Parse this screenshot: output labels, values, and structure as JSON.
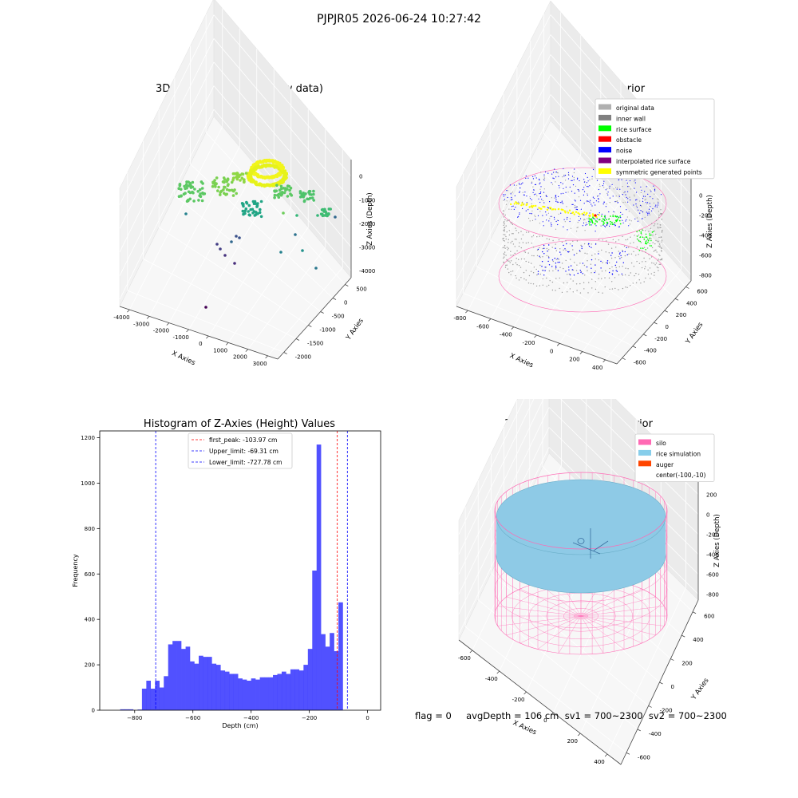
{
  "suptitle": "PJPJR05 2026-06-24 10:27:42",
  "footer_text": "flag = 0     avgDepth = 106 cm  sv1 = 700~2300  sv2 = 700~2300",
  "colors": {
    "wire": "#ff69b4",
    "rice": "#8ecae6",
    "auger": "#ff4500",
    "hist": "#3333ff",
    "gray": "#9a9a9a",
    "green": "#00ff00",
    "noise": "#0000ff",
    "yellow": "#ffff00",
    "obstacle": "#ff0000",
    "purple": "#800080"
  },
  "chart_data": [
    {
      "type": "scatter",
      "title": "3D Plot of Silo Interior(row data)",
      "xlabel": "X Axies",
      "ylabel": "Y Axies",
      "zlabel": "Z Axies (Depth)",
      "x_ticks": [
        "-4000",
        "-3000",
        "-2000",
        "-1000",
        "0",
        "1000",
        "2000",
        "3000"
      ],
      "y_ticks": [
        "-2000",
        "-1500",
        "-1000",
        "-500",
        "0",
        "500"
      ],
      "z_ticks": [
        "-4000",
        "-3000",
        "-2000",
        "-1000",
        "0"
      ],
      "xlim": [
        -4300,
        3300
      ],
      "ylim": [
        -2100,
        700
      ],
      "zlim": [
        -4500,
        200
      ]
    },
    {
      "type": "scatter",
      "title": "3D classify of Silo Interior",
      "xlabel": "X Axies",
      "ylabel": "Y Axies",
      "zlabel": "Z Axies (Depth)",
      "x_ticks": [
        "-800",
        "-600",
        "-400",
        "-200",
        "0",
        "200",
        "400"
      ],
      "y_ticks": [
        "-600",
        "-400",
        "-200",
        "0",
        "200",
        "400",
        "600"
      ],
      "z_ticks": [
        "-800",
        "-600",
        "-400",
        "-200",
        "0",
        "200"
      ],
      "xlim": [
        -850,
        450
      ],
      "ylim": [
        -650,
        650
      ],
      "zlim": [
        -900,
        250
      ],
      "legend": [
        {
          "label": "original data",
          "color": "#b0b0b0"
        },
        {
          "label": "inner wall",
          "color": "#808080"
        },
        {
          "label": "rice surface",
          "color": "#00ff00"
        },
        {
          "label": "obstacle",
          "color": "#ff0000"
        },
        {
          "label": "noise",
          "color": "#0000ff"
        },
        {
          "label": "interpolated rice surface",
          "color": "#800080"
        },
        {
          "label": "symmetric generated points",
          "color": "#ffff00"
        }
      ],
      "legend_position": "upper right"
    },
    {
      "type": "bar",
      "title": "Histogram of Z-Axies (Height) Values",
      "xlabel": "Depth (cm)",
      "ylabel": "Frequency",
      "x_ticks": [
        "−800",
        "−600",
        "−400",
        "−200",
        "0"
      ],
      "y_ticks": [
        "0",
        "200",
        "400",
        "600",
        "800",
        "1000",
        "1200"
      ],
      "xlim": [
        -920,
        45
      ],
      "ylim": [
        0,
        1230
      ],
      "bin_start": -850,
      "bin_width": 15,
      "values": [
        4,
        4,
        4,
        0,
        3,
        95,
        130,
        95,
        130,
        100,
        150,
        290,
        305,
        305,
        270,
        280,
        215,
        205,
        240,
        235,
        235,
        205,
        200,
        175,
        170,
        160,
        160,
        140,
        135,
        130,
        140,
        135,
        145,
        145,
        145,
        155,
        160,
        170,
        160,
        180,
        180,
        175,
        200,
        270,
        615,
        1170,
        335,
        280,
        340,
        260,
        475
      ],
      "lines": [
        {
          "label": "first_peak: -103.97 cm",
          "x": -103.97,
          "color": "#ff0000"
        },
        {
          "label": "Upper_limit: -69.31 cm",
          "x": -69.31,
          "color": "#0000ff"
        },
        {
          "label": "Lower_limit: -727.78 cm",
          "x": -727.78,
          "color": "#0000ff"
        }
      ],
      "legend_position": "upper center"
    },
    {
      "type": "area",
      "title": "3D simulation of Silo Interior",
      "xlabel": "X Axies",
      "ylabel": "Y Axies",
      "zlabel": "Z Axies (Depth)",
      "x_ticks": [
        "-600",
        "-400",
        "-200",
        "0",
        "200",
        "400"
      ],
      "y_ticks": [
        "-600",
        "-400",
        "-200",
        "0",
        "200",
        "400",
        "600"
      ],
      "z_ticks": [
        "-800",
        "-600",
        "-400",
        "-200",
        "0",
        "200"
      ],
      "xlim": [
        -700,
        500
      ],
      "ylim": [
        -700,
        700
      ],
      "zlim": [
        -900,
        300
      ],
      "legend": [
        {
          "label": "silo",
          "color": "#ff69b4"
        },
        {
          "label": "rice simulation",
          "color": "#87ceeb"
        },
        {
          "label": "auger",
          "color": "#ff4500"
        },
        {
          "label": "center(-100,-10)",
          "color": ""
        }
      ],
      "legend_position": "upper right"
    }
  ]
}
